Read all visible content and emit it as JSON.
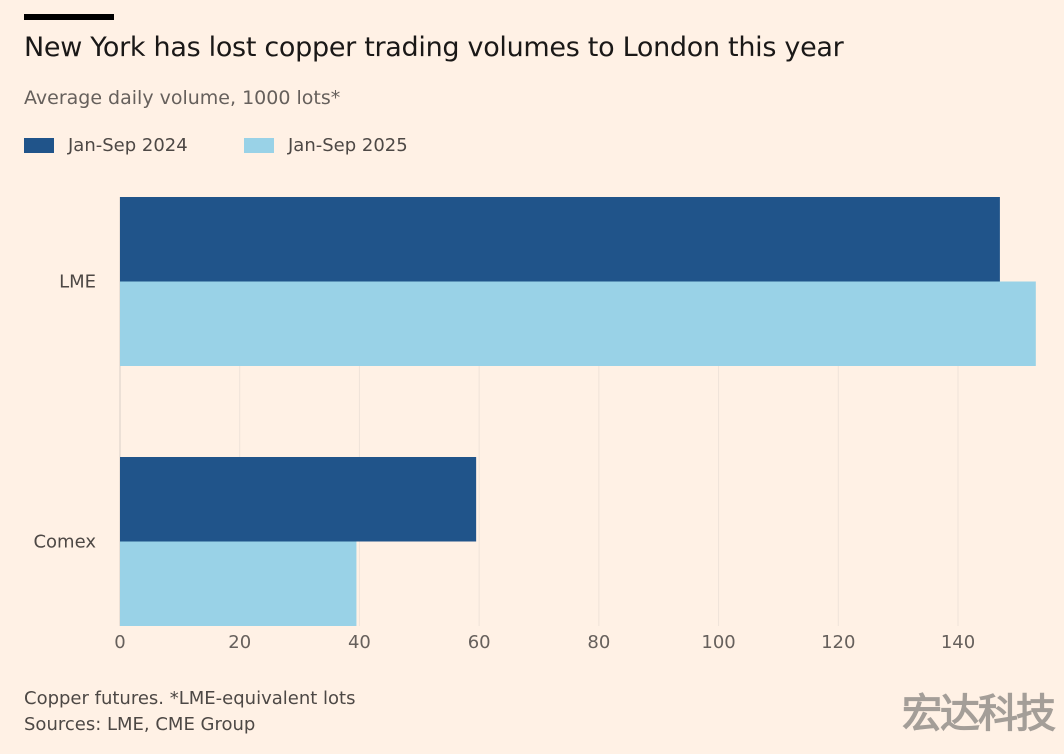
{
  "chart_data": {
    "type": "bar",
    "orientation": "horizontal",
    "title": "New York has lost copper trading volumes to London this year",
    "subtitle": "Average daily volume, 1000 lots*",
    "categories": [
      "LME",
      "Comex"
    ],
    "series": [
      {
        "name": "Jan-Sep 2024",
        "values": [
          147,
          59.5
        ],
        "color": "#20548a"
      },
      {
        "name": "Jan-Sep 2025",
        "values": [
          153,
          39.5
        ],
        "color": "#99d2e7"
      }
    ],
    "xlim": [
      0,
      153
    ],
    "xticks": [
      "0",
      "20",
      "40",
      "60",
      "80",
      "100",
      "120",
      "140"
    ],
    "grid": true,
    "legend_position": "top-left",
    "note": "Copper futures. *LME-equivalent lots",
    "source": "Sources: LME, CME Group"
  },
  "watermark": "宏达科技"
}
